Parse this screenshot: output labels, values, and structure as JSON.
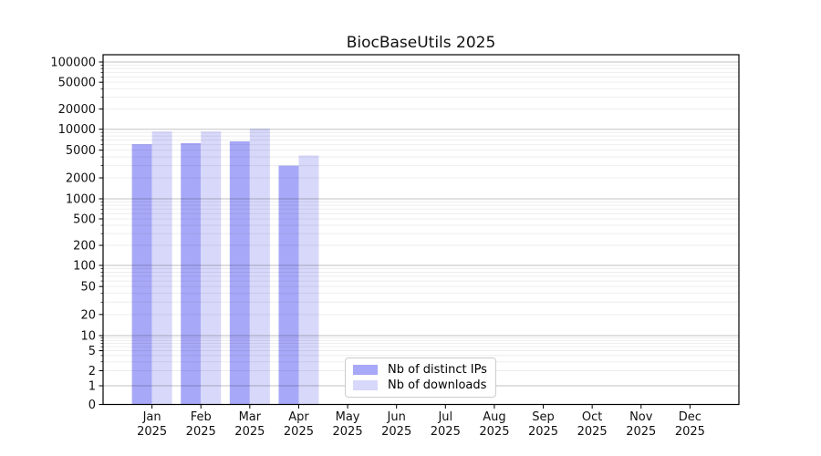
{
  "figure": {
    "title": "BiocBaseUtils 2025",
    "background_color": "#ffffff"
  },
  "chart_data": {
    "type": "bar",
    "title": "BiocBaseUtils 2025",
    "categories": [
      "Jan",
      "Feb",
      "Mar",
      "Apr",
      "May",
      "Jun",
      "Jul",
      "Aug",
      "Sep",
      "Oct",
      "Nov",
      "Dec"
    ],
    "category_year": "2025",
    "series": [
      {
        "name": "Nb of distinct IPs",
        "color": "#a8a8f8",
        "values": [
          6100,
          6300,
          6700,
          3000,
          null,
          null,
          null,
          null,
          null,
          null,
          null,
          null
        ]
      },
      {
        "name": "Nb of downloads",
        "color": "#d8d8fa",
        "values": [
          9300,
          9300,
          10200,
          4200,
          null,
          null,
          null,
          null,
          null,
          null,
          null,
          null
        ]
      }
    ],
    "yscale": "symlog",
    "yticks": [
      0,
      1,
      2,
      5,
      10,
      20,
      50,
      100,
      200,
      500,
      1000,
      2000,
      5000,
      10000,
      20000,
      50000,
      100000
    ],
    "ylim": [
      0,
      100000
    ],
    "xlabel": "",
    "ylabel": "",
    "grid": "horizontal, major and minor, drawn over bars",
    "legend_position": "inside lower-center"
  },
  "legend": {
    "items": [
      {
        "label": "Nb of distinct IPs",
        "color": "#a8a8f8"
      },
      {
        "label": "Nb of downloads",
        "color": "#d8d8fa"
      }
    ]
  }
}
